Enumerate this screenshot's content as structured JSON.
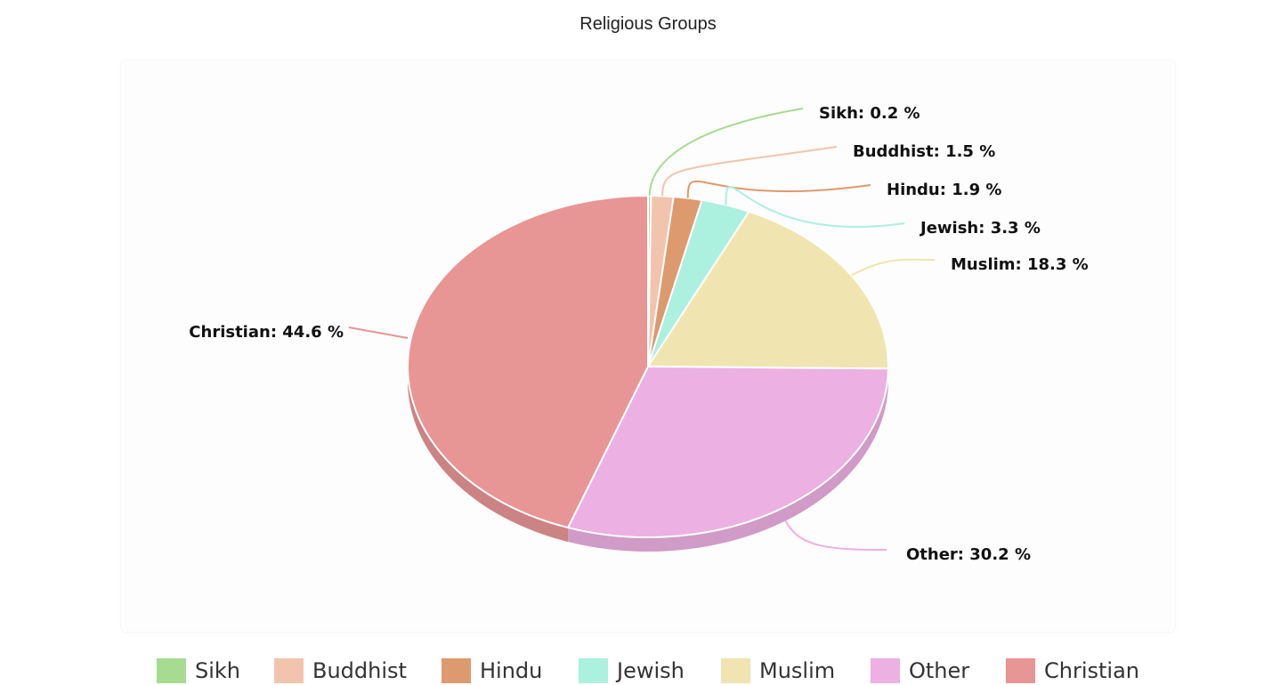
{
  "chart_data": {
    "type": "pie",
    "title": "Religious Groups",
    "label_format": "{name}: {value} %",
    "slices": [
      {
        "name": "Sikh",
        "value": 0.2,
        "color": "#a6db91"
      },
      {
        "name": "Buddhist",
        "value": 1.5,
        "color": "#f2c4ae"
      },
      {
        "name": "Hindu",
        "value": 1.9,
        "color": "#dd9a6e"
      },
      {
        "name": "Jewish",
        "value": 3.3,
        "color": "#acf0df"
      },
      {
        "name": "Muslim",
        "value": 18.3,
        "color": "#f0e5b0"
      },
      {
        "name": "Other",
        "value": 30.2,
        "color": "#ecb0e2"
      },
      {
        "name": "Christian",
        "value": 44.6,
        "color": "#e89595"
      }
    ],
    "legend_position": "bottom"
  }
}
